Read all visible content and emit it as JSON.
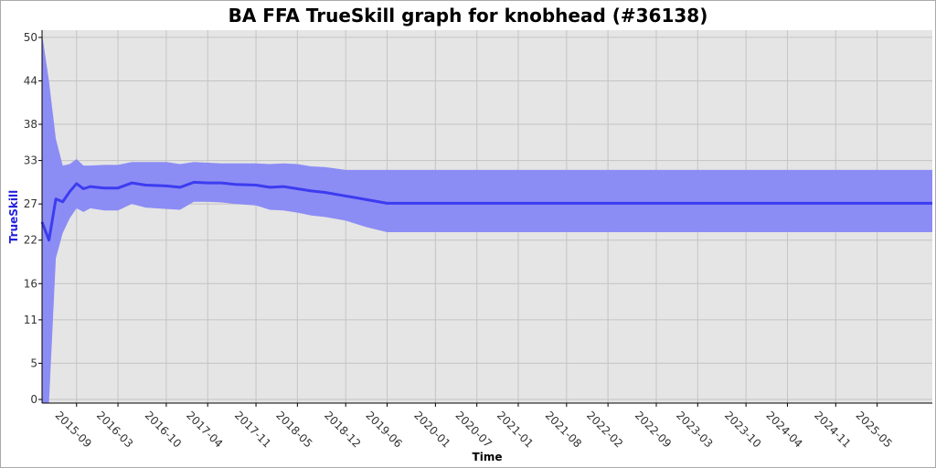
{
  "chart_data": {
    "type": "area",
    "title": "BA FFA TrueSkill graph for knobhead (#36138)",
    "xlabel": "Time",
    "ylabel": "TrueSkill",
    "y_ticks": [
      0,
      5,
      11,
      16,
      22,
      27,
      33,
      38,
      44,
      50
    ],
    "ylim": [
      -0.5,
      51
    ],
    "xlim": [
      "2015-04",
      "2026-01"
    ],
    "x_ticks": [
      "2015-09",
      "2016-03",
      "2016-10",
      "2017-04",
      "2017-11",
      "2018-05",
      "2018-12",
      "2019-06",
      "2020-01",
      "2020-07",
      "2021-01",
      "2021-08",
      "2022-02",
      "2022-09",
      "2023-03",
      "2023-10",
      "2024-04",
      "2024-11",
      "2025-05"
    ],
    "grid": true,
    "colors": {
      "background": "#e5e5e5",
      "band": "#8c8cf5",
      "line": "#3c3cf0",
      "grid": "#c4c4c4"
    },
    "series": [
      {
        "x": [
          "2015-04",
          "2015-05",
          "2015-06",
          "2015-07",
          "2015-08",
          "2015-09",
          "2015-10",
          "2015-11",
          "2016-01",
          "2016-03",
          "2016-05",
          "2016-07",
          "2016-10",
          "2016-12",
          "2017-02",
          "2017-04",
          "2017-06",
          "2017-08",
          "2017-11",
          "2018-01",
          "2018-03",
          "2018-05",
          "2018-07",
          "2018-09",
          "2018-12",
          "2019-03",
          "2019-06",
          "2019-09",
          "2020-07",
          "2022-02",
          "2024-04",
          "2026-01"
        ],
        "values": [
          24.5,
          22,
          27.7,
          27.3,
          28.7,
          29.8,
          29.1,
          29.4,
          29.2,
          29.2,
          29.9,
          29.6,
          29.5,
          29.3,
          30,
          29.9,
          29.9,
          29.7,
          29.6,
          29.3,
          29.4,
          29.1,
          28.8,
          28.6,
          28.1,
          27.6,
          27.1,
          27.1,
          27.1,
          27.1,
          27.1,
          27.1
        ],
        "upper": [
          50.5,
          44,
          36,
          32.3,
          32.5,
          33.2,
          32.3,
          32.3,
          32.4,
          32.4,
          32.8,
          32.8,
          32.8,
          32.5,
          32.8,
          32.7,
          32.6,
          32.6,
          32.6,
          32.5,
          32.6,
          32.5,
          32.2,
          32.1,
          31.7,
          31.7,
          31.7,
          31.7,
          31.7,
          31.7,
          31.7,
          31.7
        ],
        "lower": [
          -0.5,
          -0.5,
          19.5,
          23,
          25,
          26.4,
          25.9,
          26.4,
          26.1,
          26.1,
          27,
          26.5,
          26.3,
          26.2,
          27.3,
          27.3,
          27.2,
          27,
          26.8,
          26.2,
          26.1,
          25.8,
          25.4,
          25.2,
          24.7,
          23.8,
          23.1,
          23.1,
          23.1,
          23.1,
          23.1,
          23.1
        ]
      }
    ]
  }
}
